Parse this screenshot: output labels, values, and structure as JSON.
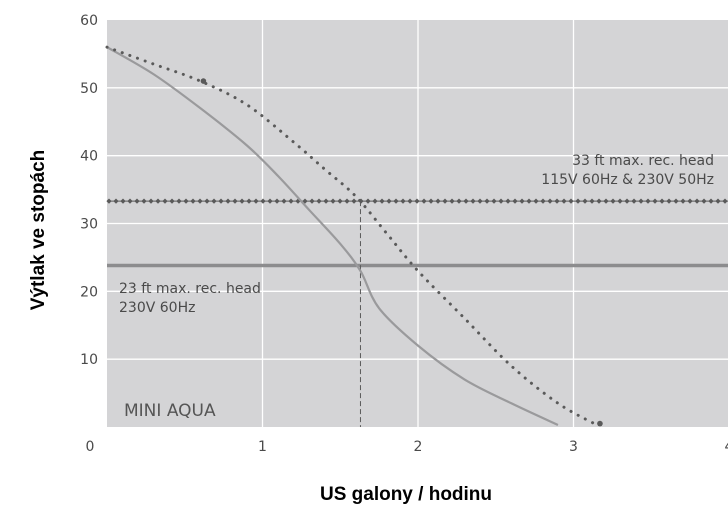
{
  "chart_data": {
    "type": "line",
    "title": "",
    "xlabel": "US galony / hodinu",
    "ylabel": "Výtlak ve stopách",
    "xlim": [
      0,
      4
    ],
    "ylim": [
      0,
      60
    ],
    "x_ticks": [
      "0",
      "1",
      "2",
      "3",
      "4"
    ],
    "y_ticks": [
      "10",
      "20",
      "30",
      "40",
      "50",
      "60"
    ],
    "grid": true,
    "background_color": "#d4d4d6",
    "grid_color": "#ffffff",
    "curve_color": "#9a9a9c",
    "dark_color": "#5a5a5a",
    "series": [
      {
        "style": "solid",
        "x": [
          0,
          0.3,
          0.6,
          0.9,
          1.1,
          1.3,
          1.5,
          1.63,
          1.75,
          2.0,
          2.3,
          2.6,
          2.9
        ],
        "y": [
          56,
          52,
          47,
          41.5,
          37,
          32,
          27,
          23,
          17.5,
          12,
          7,
          3.5,
          0.3
        ]
      },
      {
        "style": "dotted",
        "x": [
          0,
          0.3,
          0.6,
          0.9,
          1.2,
          1.4,
          1.6,
          1.8,
          2.0,
          2.3,
          2.6,
          2.9,
          3.15
        ],
        "y": [
          56,
          53.5,
          51,
          47.5,
          42,
          38,
          34,
          28.5,
          23,
          16,
          9,
          3.5,
          0.3
        ]
      }
    ],
    "reference_lines": [
      {
        "orientation": "horizontal",
        "y": 33.3,
        "style": "dotted-diamond",
        "label_lines": [
          "33 ft max. rec. head",
          "115V 60Hz & 230V 50Hz"
        ]
      },
      {
        "orientation": "horizontal",
        "y": 23.8,
        "style": "solid",
        "label_lines": [
          "23 ft max. rec. head",
          "230V 60Hz"
        ]
      },
      {
        "orientation": "vertical",
        "x": 1.63,
        "y_top": 33.3,
        "style": "dashed"
      }
    ],
    "markers": [
      {
        "x": 0.62,
        "y": 51
      },
      {
        "x": 3.17,
        "y": 0.5
      }
    ],
    "annotations": [
      {
        "text": "MINI AQUA"
      }
    ]
  }
}
